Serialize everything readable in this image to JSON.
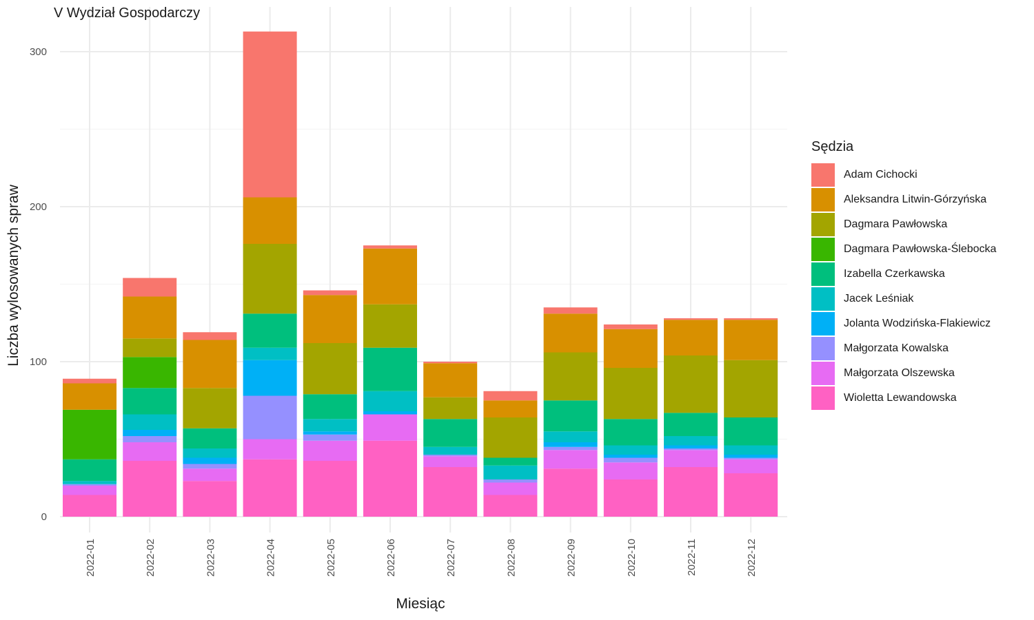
{
  "chart_data": {
    "type": "bar",
    "stacked": true,
    "title": "V Wydział Gospodarczy",
    "xlabel": "Miesiąc",
    "ylabel": "Liczba wylosowanych spraw",
    "ylim": [
      0,
      320
    ],
    "yticks": [
      0,
      100,
      200,
      300
    ],
    "grid": true,
    "legend_position": "right",
    "legend_title": "Sędzia",
    "categories": [
      "2022-01",
      "2022-02",
      "2022-03",
      "2022-04",
      "2022-05",
      "2022-06",
      "2022-07",
      "2022-08",
      "2022-09",
      "2022-10",
      "2022-11",
      "2022-12"
    ],
    "series": [
      {
        "name": "Wioletta Lewandowska",
        "color": "#FF61C3",
        "values": [
          14,
          36,
          23,
          37,
          36,
          49,
          32,
          14,
          31,
          24,
          32,
          28
        ]
      },
      {
        "name": "Małgorzata Olszewska",
        "color": "#E76BF3",
        "values": [
          6,
          12,
          8,
          13,
          13,
          17,
          7,
          8,
          12,
          11,
          11,
          9
        ]
      },
      {
        "name": "Małgorzata Kowalska",
        "color": "#9590FF",
        "values": [
          1,
          4,
          3,
          28,
          4,
          0,
          1,
          2,
          2,
          3,
          1,
          1
        ]
      },
      {
        "name": "Jolanta Wodzińska-Flakiewicz",
        "color": "#00B0F6",
        "values": [
          0,
          4,
          4,
          23,
          2,
          2,
          0,
          0,
          3,
          2,
          2,
          2
        ]
      },
      {
        "name": "Jacek Leśniak",
        "color": "#00BFC4",
        "values": [
          2,
          10,
          6,
          8,
          8,
          13,
          5,
          9,
          7,
          6,
          6,
          6
        ]
      },
      {
        "name": "Izabella Czerkawska",
        "color": "#00BF7D",
        "values": [
          14,
          17,
          13,
          22,
          16,
          28,
          18,
          5,
          20,
          17,
          15,
          18
        ]
      },
      {
        "name": "Dagmara Pawłowska-Ślebocka",
        "color": "#39B600",
        "values": [
          32,
          20,
          0,
          0,
          0,
          0,
          0,
          0,
          0,
          0,
          0,
          0
        ]
      },
      {
        "name": "Dagmara Pawłowska",
        "color": "#A3A500",
        "values": [
          0,
          12,
          26,
          45,
          33,
          28,
          14,
          26,
          31,
          33,
          37,
          37
        ]
      },
      {
        "name": "Aleksandra Litwin-Górzyńska",
        "color": "#D89000",
        "values": [
          17,
          27,
          31,
          30,
          31,
          36,
          22,
          11,
          25,
          25,
          23,
          26
        ]
      },
      {
        "name": "Adam Cichocki",
        "color": "#F8766D",
        "values": [
          3,
          12,
          5,
          107,
          3,
          2,
          1,
          6,
          4,
          3,
          1,
          1
        ]
      }
    ]
  }
}
